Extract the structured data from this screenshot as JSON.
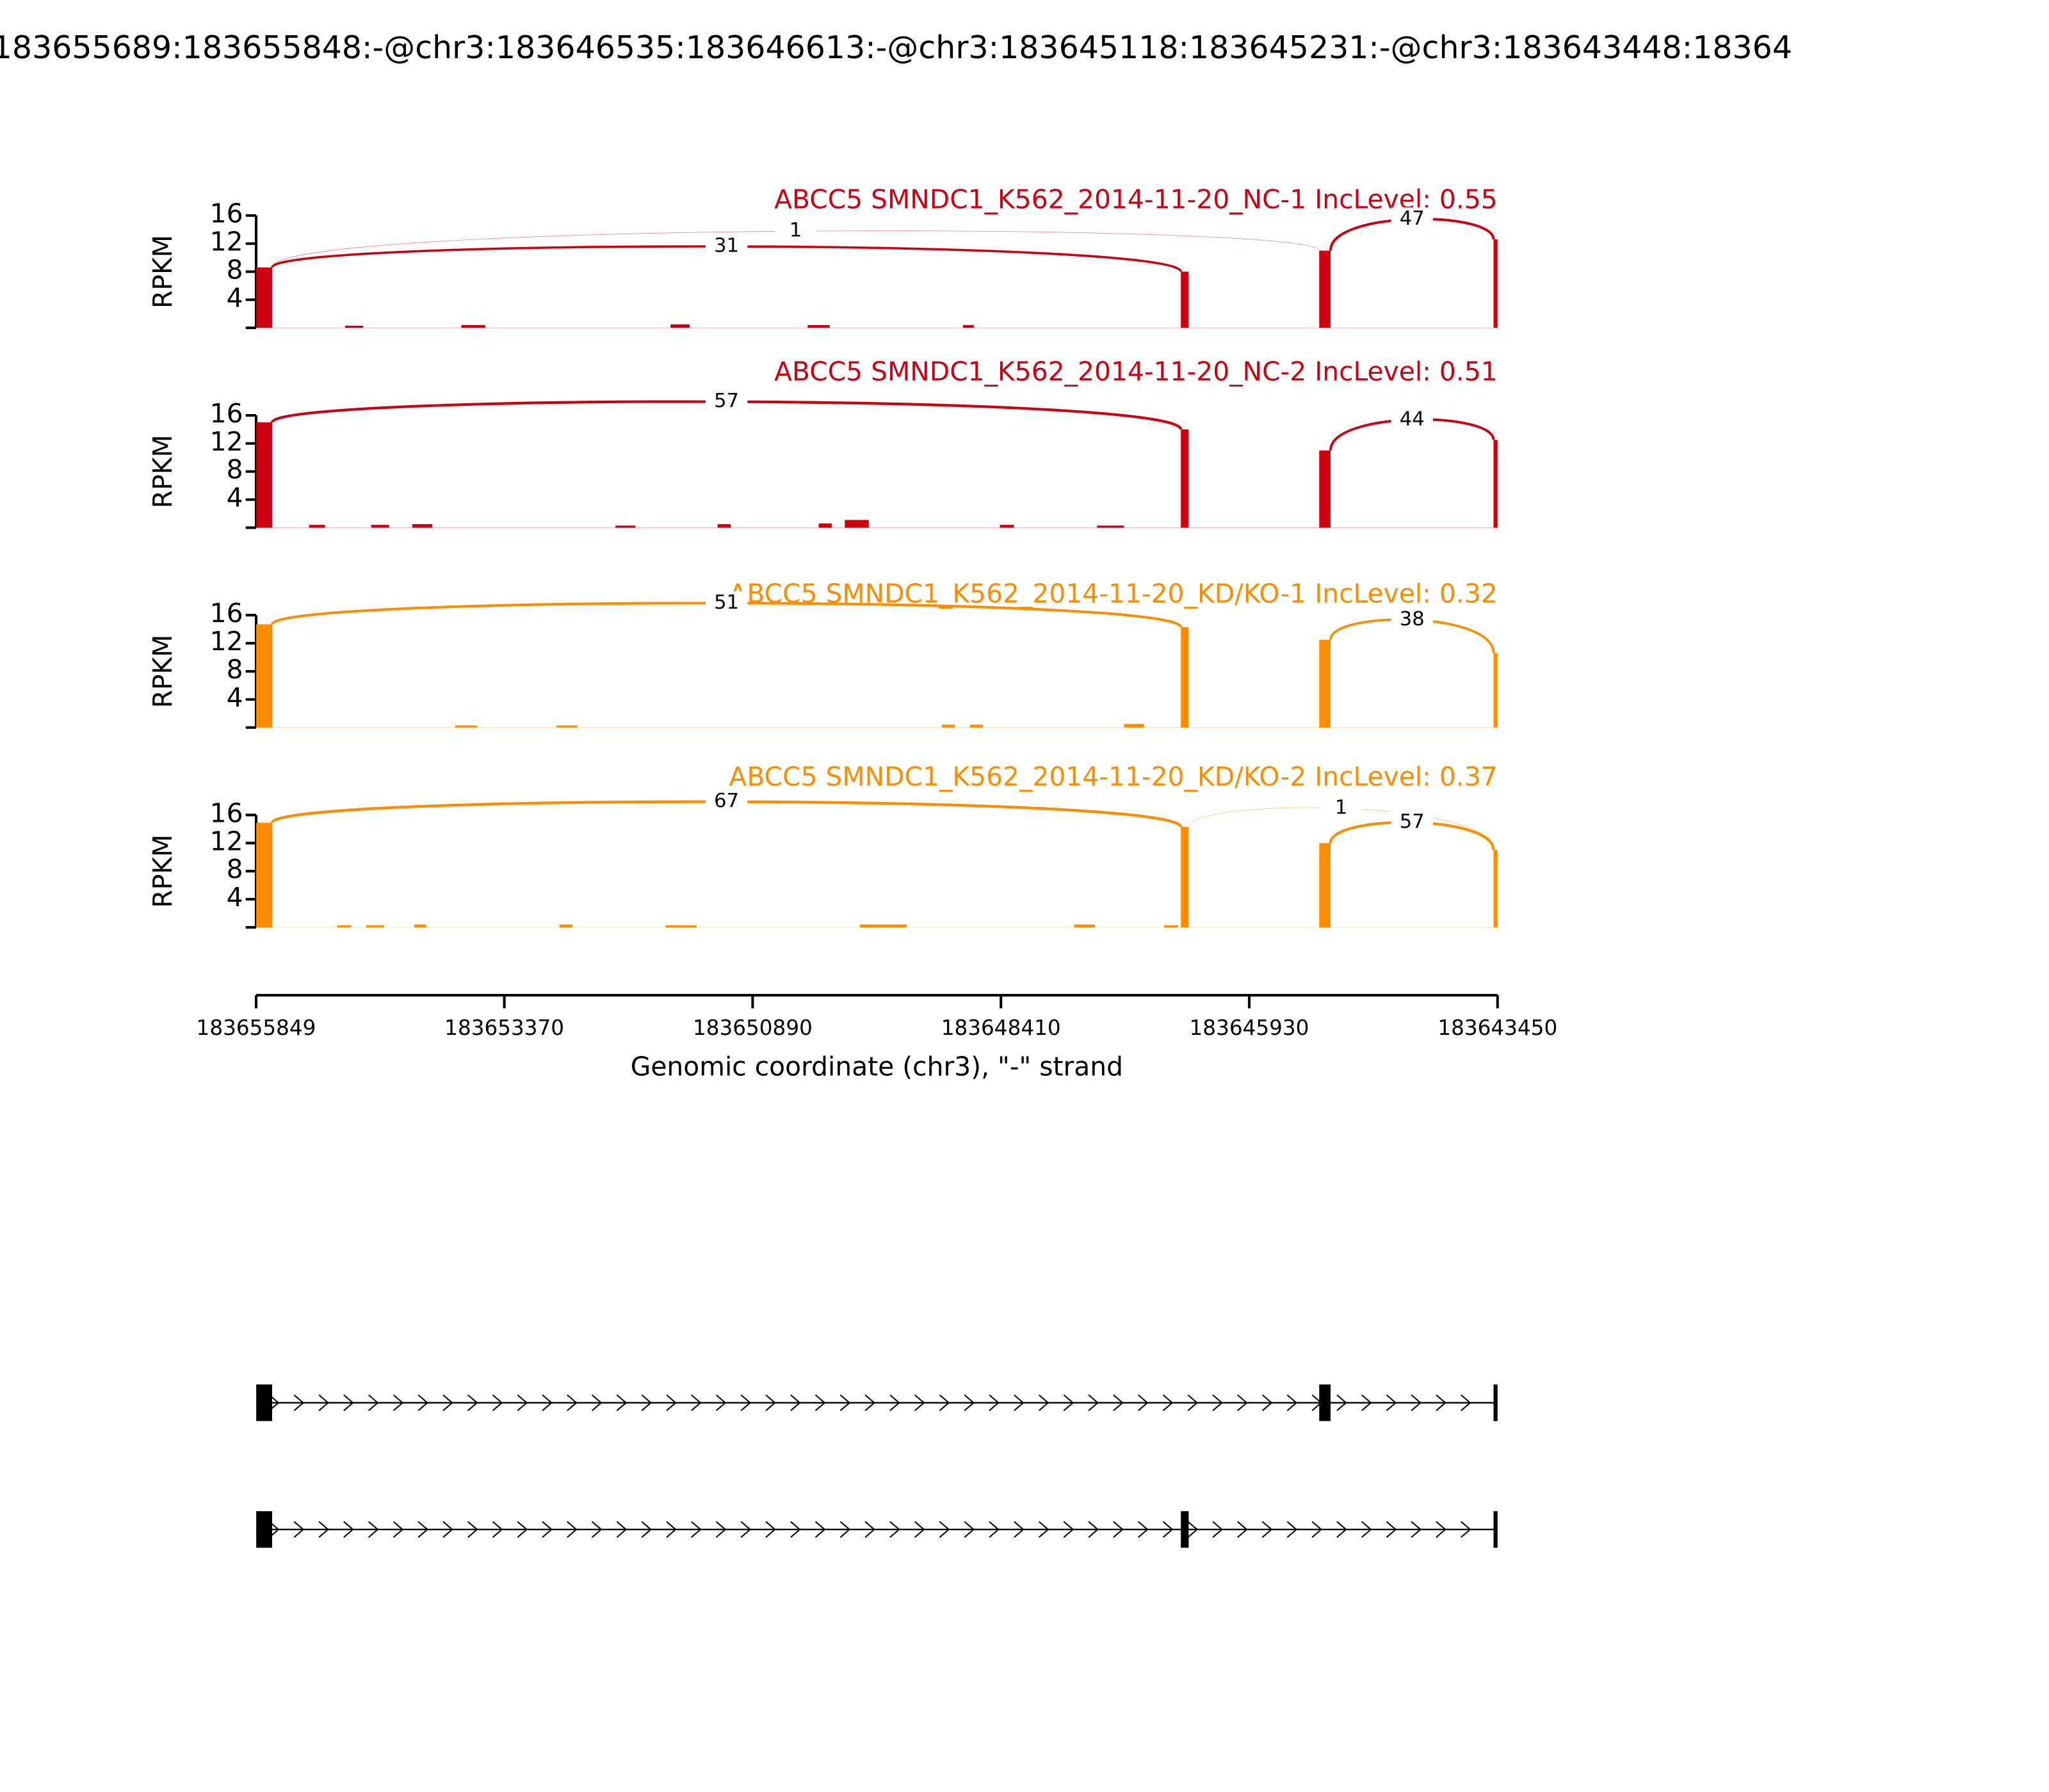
{
  "chart_data": {
    "type": "sashimi",
    "title": "183655689:183655848:-@chr3:183646535:183646613:-@chr3:183645118:183645231:-@chr3:183643448:18364",
    "xlabel": "Genomic coordinate (chr3), \"-\" strand",
    "xlim": [
      183655849,
      183643450
    ],
    "xticks": [
      183655849,
      183653370,
      183650890,
      183648410,
      183645930,
      183643450
    ],
    "panels": [
      {
        "title": "ABCC5 SMNDC1_K562_2014-11-20_NC-1 IncLevel: 0.55",
        "color": "#cc0011",
        "ylabel": "RPKM",
        "ylim": [
          0,
          16
        ],
        "yticks": [
          4,
          8,
          12,
          16
        ],
        "coverage": [
          {
            "start": 183655848,
            "end": 183655689,
            "value": 8.6
          },
          {
            "start": 183654960,
            "end": 183654780,
            "value": 0.3
          },
          {
            "start": 183653800,
            "end": 183653560,
            "value": 0.4
          },
          {
            "start": 183651710,
            "end": 183651520,
            "value": 0.5
          },
          {
            "start": 183650340,
            "end": 183650120,
            "value": 0.4
          },
          {
            "start": 183648790,
            "end": 183648680,
            "value": 0.4
          },
          {
            "start": 183646613,
            "end": 183646535,
            "value": 8
          },
          {
            "start": 183645231,
            "end": 183645118,
            "value": 11
          },
          {
            "start": 183643490,
            "end": 183643450,
            "value": 12.6
          }
        ],
        "junctions": [
          {
            "start": 183655689,
            "end": 183646613,
            "count": 31
          },
          {
            "start": 183655689,
            "end": 183645231,
            "count": 1
          },
          {
            "start": 183645118,
            "end": 183643490,
            "count": 47
          }
        ]
      },
      {
        "title": "ABCC5 SMNDC1_K562_2014-11-20_NC-2 IncLevel: 0.51",
        "color": "#cc0011",
        "ylabel": "RPKM",
        "ylim": [
          0,
          16
        ],
        "yticks": [
          4,
          8,
          12,
          16
        ],
        "coverage": [
          {
            "start": 183655848,
            "end": 183655689,
            "value": 15
          },
          {
            "start": 183655320,
            "end": 183655160,
            "value": 0.4
          },
          {
            "start": 183654700,
            "end": 183654520,
            "value": 0.4
          },
          {
            "start": 183654290,
            "end": 183654090,
            "value": 0.5
          },
          {
            "start": 183652260,
            "end": 183652060,
            "value": 0.3
          },
          {
            "start": 183651240,
            "end": 183651110,
            "value": 0.5
          },
          {
            "start": 183650230,
            "end": 183650100,
            "value": 0.6
          },
          {
            "start": 183649970,
            "end": 183649730,
            "value": 1.1
          },
          {
            "start": 183648420,
            "end": 183648280,
            "value": 0.4
          },
          {
            "start": 183647450,
            "end": 183647180,
            "value": 0.3
          },
          {
            "start": 183646613,
            "end": 183646535,
            "value": 14
          },
          {
            "start": 183645231,
            "end": 183645118,
            "value": 11
          },
          {
            "start": 183643490,
            "end": 183643450,
            "value": 12.5
          }
        ],
        "junctions": [
          {
            "start": 183655689,
            "end": 183646613,
            "count": 57
          },
          {
            "start": 183645118,
            "end": 183643490,
            "count": 44
          }
        ]
      },
      {
        "title": "ABCC5 SMNDC1_K562_2014-11-20_KD/KO-1 IncLevel: 0.32",
        "color": "#ff8c00",
        "ylabel": "RPKM",
        "ylim": [
          0,
          16
        ],
        "yticks": [
          4,
          8,
          12,
          16
        ],
        "coverage": [
          {
            "start": 183655848,
            "end": 183655689,
            "value": 14.7
          },
          {
            "start": 183653860,
            "end": 183653640,
            "value": 0.3
          },
          {
            "start": 183652850,
            "end": 183652640,
            "value": 0.3
          },
          {
            "start": 183649000,
            "end": 183648870,
            "value": 0.4
          },
          {
            "start": 183648720,
            "end": 183648590,
            "value": 0.4
          },
          {
            "start": 183647180,
            "end": 183646980,
            "value": 0.5
          },
          {
            "start": 183646613,
            "end": 183646535,
            "value": 14.3
          },
          {
            "start": 183645231,
            "end": 183645118,
            "value": 12.5
          },
          {
            "start": 183643490,
            "end": 183643450,
            "value": 10.6
          }
        ],
        "junctions": [
          {
            "start": 183655689,
            "end": 183646613,
            "count": 51
          },
          {
            "start": 183645118,
            "end": 183643490,
            "count": 38
          }
        ]
      },
      {
        "title": "ABCC5 SMNDC1_K562_2014-11-20_KD/KO-2 IncLevel: 0.37",
        "color": "#ff8c00",
        "ylabel": "RPKM",
        "ylim": [
          0,
          16
        ],
        "yticks": [
          4,
          8,
          12,
          16
        ],
        "coverage": [
          {
            "start": 183655848,
            "end": 183655689,
            "value": 14.9
          },
          {
            "start": 183655040,
            "end": 183654900,
            "value": 0.3
          },
          {
            "start": 183654750,
            "end": 183654570,
            "value": 0.3
          },
          {
            "start": 183654270,
            "end": 183654150,
            "value": 0.4
          },
          {
            "start": 183652820,
            "end": 183652690,
            "value": 0.4
          },
          {
            "start": 183651760,
            "end": 183651450,
            "value": 0.3
          },
          {
            "start": 183649820,
            "end": 183649350,
            "value": 0.4
          },
          {
            "start": 183647680,
            "end": 183647470,
            "value": 0.4
          },
          {
            "start": 183646780,
            "end": 183646640,
            "value": 0.3
          },
          {
            "start": 183646613,
            "end": 183646535,
            "value": 14.3
          },
          {
            "start": 183645231,
            "end": 183645118,
            "value": 12
          },
          {
            "start": 183643490,
            "end": 183643450,
            "value": 11
          }
        ],
        "junctions": [
          {
            "start": 183655689,
            "end": 183646613,
            "count": 67
          },
          {
            "start": 183646535,
            "end": 183643490,
            "count": 1
          },
          {
            "start": 183645118,
            "end": 183643490,
            "count": 57
          }
        ]
      }
    ],
    "isoforms": [
      {
        "exons": [
          [
            183655848,
            183655689
          ],
          [
            183645231,
            183645118
          ],
          [
            183643490,
            183643450
          ]
        ]
      },
      {
        "exons": [
          [
            183655848,
            183655689
          ],
          [
            183646613,
            183646535
          ],
          [
            183643490,
            183643450
          ]
        ]
      }
    ]
  }
}
